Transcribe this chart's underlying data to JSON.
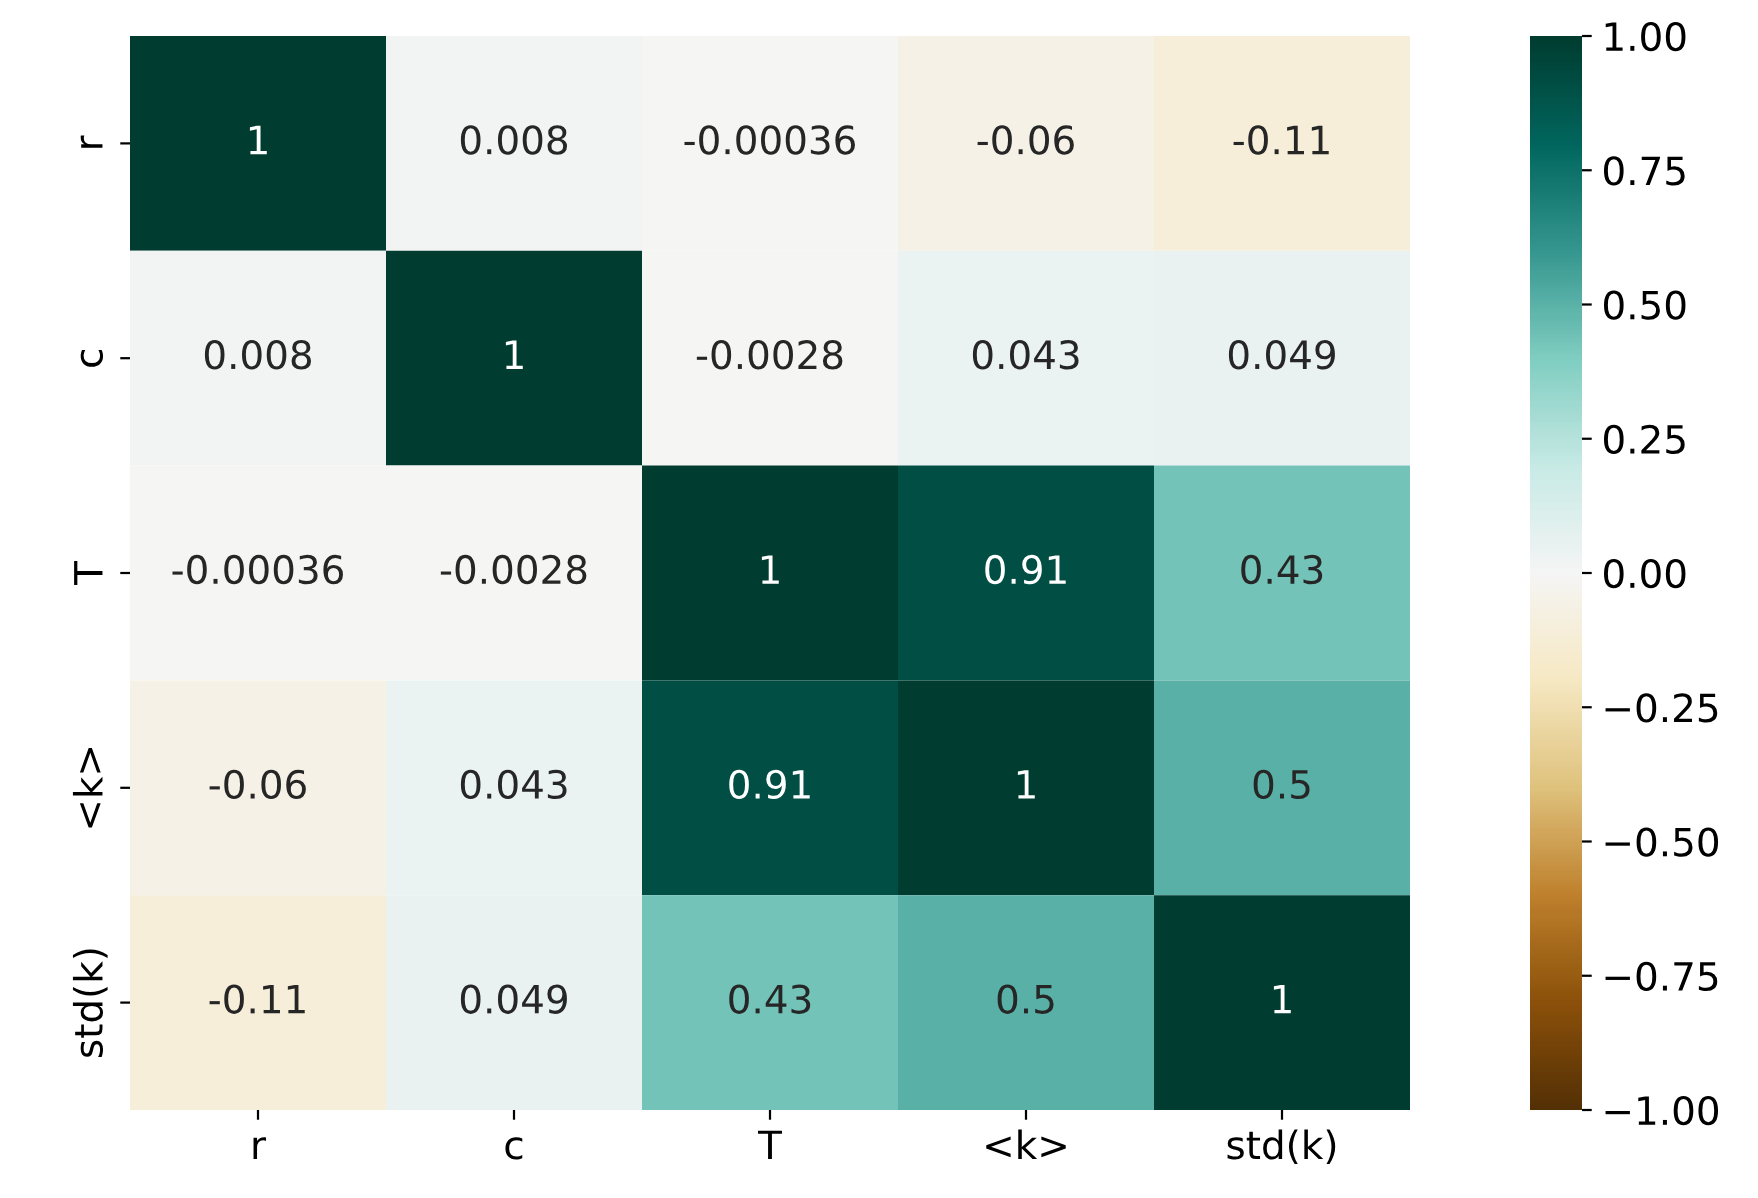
{
  "chart_data": {
    "type": "heatmap",
    "categories": [
      "r",
      "c",
      "T",
      "<k>",
      "std(k)"
    ],
    "y_categories": [
      "r",
      "c",
      "T",
      "<k>",
      "std(k)"
    ],
    "cells": [
      [
        1,
        0.008,
        -0.00036,
        -0.06,
        -0.11
      ],
      [
        0.008,
        1,
        -0.0028,
        0.043,
        0.049
      ],
      [
        -0.00036,
        -0.0028,
        1,
        0.91,
        0.43
      ],
      [
        -0.06,
        0.043,
        0.91,
        1,
        0.5
      ],
      [
        -0.11,
        0.049,
        0.43,
        0.5,
        1
      ]
    ],
    "data_labels": true,
    "clim": [
      -1,
      1
    ],
    "cticks": [
      {
        "value": -1,
        "label": "−1.00"
      },
      {
        "value": -0.75,
        "label": "−0.75"
      },
      {
        "value": -0.5,
        "label": "−0.50"
      },
      {
        "value": -0.25,
        "label": "−0.25"
      },
      {
        "value": 0,
        "label": "0.00"
      },
      {
        "value": 0.25,
        "label": "0.25"
      },
      {
        "value": 0.5,
        "label": "0.50"
      },
      {
        "value": 0.75,
        "label": "0.75"
      },
      {
        "value": 1,
        "label": "1.00"
      }
    ]
  }
}
